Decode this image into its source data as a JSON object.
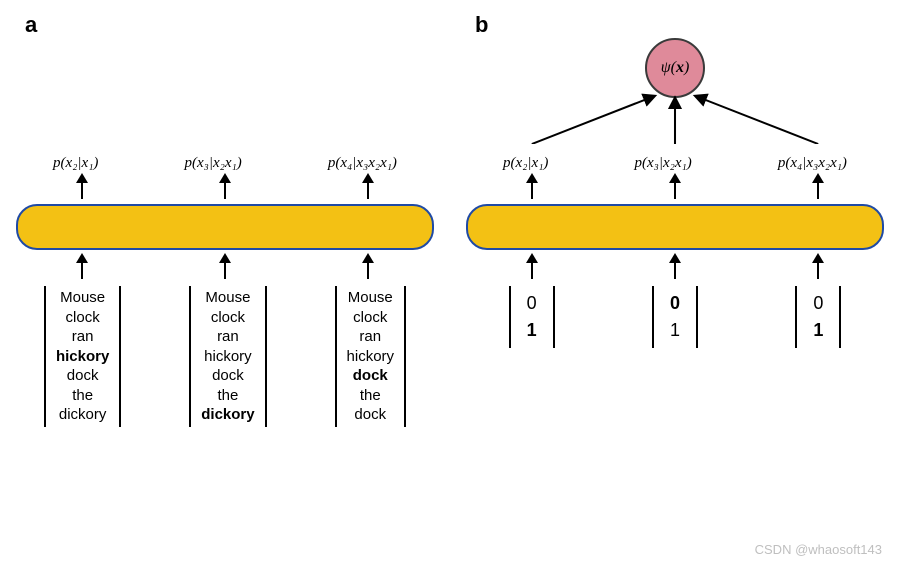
{
  "panel_a": {
    "label": "a",
    "outputs": [
      "p(x₂|x₁)",
      "p(x₃|x₂x₁)",
      "p(x₄|x₃x₂x₁)"
    ],
    "inputs": [
      {
        "words": [
          "Mouse",
          "clock",
          "ran",
          "hickory",
          "dock",
          "the",
          "dickory"
        ],
        "bold_index": 3
      },
      {
        "words": [
          "Mouse",
          "clock",
          "ran",
          "hickory",
          "dock",
          "the",
          "dickory"
        ],
        "bold_index": 6
      },
      {
        "words": [
          "Mouse",
          "clock",
          "ran",
          "hickory",
          "dock",
          "the",
          "dock"
        ],
        "bold_index": 4
      }
    ]
  },
  "panel_b": {
    "label": "b",
    "psi_label": "ψ(x)",
    "outputs": [
      "p(x₂|x₁)",
      "p(x₃|x₂x₁)",
      "p(x₄|x₃x₂x₁)"
    ],
    "inputs": [
      {
        "values": [
          "0",
          "1"
        ],
        "bold_index": 1
      },
      {
        "values": [
          "0",
          "1"
        ],
        "bold_index": 0
      },
      {
        "values": [
          "0",
          "1"
        ],
        "bold_index": 1
      }
    ]
  },
  "style": {
    "bar_fill": "#f3c114",
    "bar_stroke": "#1f4aa5",
    "bar_stroke_width": 2,
    "psi_fill": "#df8a9a",
    "psi_stroke": "#3a3a3a",
    "psi_stroke_width": 2,
    "arrow_color": "#000000",
    "arrow_stroke_width": 2,
    "background": "#ffffff"
  },
  "watermark": "CSDN @whaosoft143"
}
